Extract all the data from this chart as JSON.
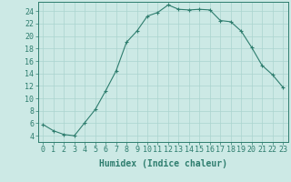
{
  "xlabel": "Humidex (Indice chaleur)",
  "x": [
    0,
    1,
    2,
    3,
    4,
    5,
    6,
    7,
    8,
    9,
    10,
    11,
    12,
    13,
    14,
    15,
    16,
    17,
    18,
    19,
    20,
    21,
    22,
    23
  ],
  "y": [
    5.8,
    4.8,
    4.2,
    4.0,
    6.1,
    8.2,
    11.2,
    14.4,
    19.0,
    20.8,
    23.2,
    23.8,
    25.0,
    24.3,
    24.2,
    24.3,
    24.2,
    22.5,
    22.3,
    20.8,
    18.2,
    15.3,
    13.8,
    11.8
  ],
  "line_color": "#2e7d6e",
  "bg_color": "#cce9e5",
  "grid_color": "#aad4cf",
  "ylim": [
    3,
    25.5
  ],
  "xlim": [
    -0.5,
    23.5
  ],
  "yticks": [
    4,
    6,
    8,
    10,
    12,
    14,
    16,
    18,
    20,
    22,
    24
  ],
  "xticks": [
    0,
    1,
    2,
    3,
    4,
    5,
    6,
    7,
    8,
    9,
    10,
    11,
    12,
    13,
    14,
    15,
    16,
    17,
    18,
    19,
    20,
    21,
    22,
    23
  ],
  "tick_color": "#2e7d6e",
  "label_fontsize": 6.0,
  "xlabel_fontsize": 7.0
}
